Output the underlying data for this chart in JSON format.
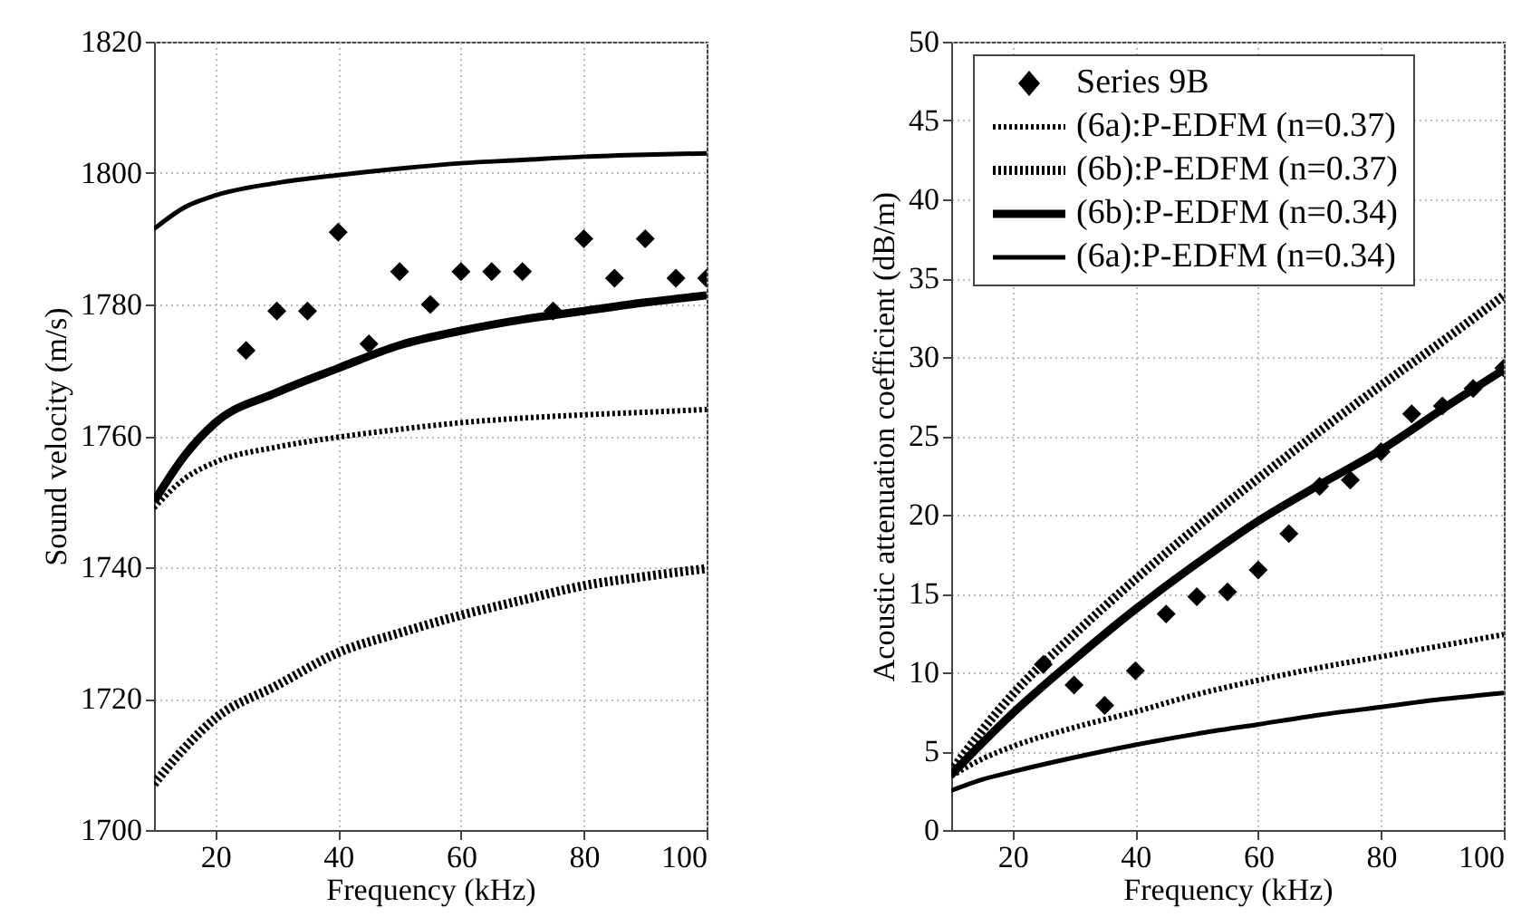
{
  "chart_data": [
    {
      "type": "line",
      "xlabel": "Frequency (kHz)",
      "ylabel": "Sound velocity (m/s)",
      "xlim": [
        10,
        100
      ],
      "xticks": [
        20,
        40,
        60,
        80,
        100
      ],
      "ylim": [
        1700,
        1820
      ],
      "yticks": [
        1700,
        1720,
        1740,
        1760,
        1780,
        1800,
        1820
      ],
      "grid": true,
      "series": [
        {
          "type": "scatter",
          "marker": "diamond",
          "color": "#000000",
          "x": [
            25,
            30,
            35,
            40,
            45,
            50,
            55,
            60,
            65,
            70,
            75,
            80,
            85,
            90,
            95,
            100
          ],
          "values": [
            1773,
            1779,
            1779,
            1791,
            1774,
            1785,
            1780,
            1785,
            1785,
            1785,
            1779,
            1790,
            1784,
            1790,
            1784,
            1784
          ]
        },
        {
          "type": "line",
          "line_style": "dotted",
          "color": "#000000",
          "x": [
            10,
            15,
            20,
            30,
            40,
            50,
            60,
            70,
            80,
            90,
            100
          ],
          "values": [
            1749,
            1753.5,
            1756,
            1758.3,
            1759.8,
            1761,
            1762,
            1762.7,
            1763.2,
            1763.6,
            1764
          ]
        },
        {
          "type": "line",
          "line_style": "dotted",
          "color": "#000000",
          "x": [
            10,
            15,
            20,
            30,
            40,
            50,
            60,
            70,
            80,
            90,
            100
          ],
          "values": [
            1707,
            1712.5,
            1717,
            1722,
            1727,
            1730,
            1732.7,
            1735,
            1737.2,
            1738.6,
            1739.8
          ]
        },
        {
          "type": "line",
          "line_style": "solid",
          "color": "#000000",
          "x": [
            10,
            15,
            20,
            30,
            40,
            50,
            60,
            70,
            80,
            90,
            100
          ],
          "values": [
            1750,
            1757,
            1762,
            1766.6,
            1770.3,
            1773.8,
            1776,
            1777.7,
            1779,
            1780.3,
            1781.4
          ]
        },
        {
          "type": "line",
          "line_style": "solid",
          "color": "#000000",
          "x": [
            10,
            15,
            20,
            30,
            40,
            50,
            60,
            70,
            80,
            90,
            100
          ],
          "values": [
            1791.5,
            1794.8,
            1796.6,
            1798.5,
            1799.7,
            1800.7,
            1801.5,
            1802,
            1802.5,
            1802.8,
            1803
          ]
        }
      ]
    },
    {
      "type": "line",
      "xlabel": "Frequency (kHz)",
      "ylabel": "Acoustic attenuation coefficient (dB/m)",
      "xlim": [
        10,
        100
      ],
      "xticks": [
        20,
        40,
        60,
        80,
        100
      ],
      "ylim": [
        0,
        50
      ],
      "yticks": [
        0,
        5,
        10,
        15,
        20,
        25,
        30,
        35,
        40,
        45,
        50
      ],
      "grid": true,
      "legend": "top left",
      "series": [
        {
          "type": "scatter",
          "name": "Series 9B",
          "marker": "diamond",
          "color": "#000000",
          "x": [
            25,
            30,
            35,
            40,
            45,
            50,
            55,
            60,
            65,
            70,
            75,
            80,
            85,
            90,
            95,
            100
          ],
          "values": [
            10.5,
            9.2,
            7.9,
            10.1,
            13.7,
            14.8,
            15.1,
            16.5,
            18.8,
            21.8,
            22.2,
            24,
            26.4,
            26.9,
            28,
            29.3
          ]
        },
        {
          "type": "line",
          "name": "(6a):P-EDFM (n=0.37)",
          "line_style": "dotted",
          "color": "#000000",
          "x": [
            10,
            15,
            20,
            30,
            40,
            50,
            60,
            70,
            80,
            90,
            100
          ],
          "values": [
            3.4,
            4.5,
            5.3,
            6.5,
            7.5,
            8.6,
            9.5,
            10.3,
            11,
            11.7,
            12.4
          ]
        },
        {
          "type": "line",
          "name": "(6b):P-EDFM (n=0.37)",
          "line_style": "dotted",
          "color": "#000000",
          "x": [
            10,
            15,
            20,
            30,
            40,
            50,
            60,
            70,
            80,
            90,
            100
          ],
          "values": [
            3.7,
            6.3,
            8.6,
            12.4,
            15.9,
            19.2,
            22.3,
            25.3,
            28.2,
            31,
            33.9
          ]
        },
        {
          "type": "line",
          "name": "(6b):P-EDFM (n=0.34)",
          "line_style": "solid",
          "color": "#000000",
          "x": [
            10,
            15,
            20,
            30,
            40,
            50,
            60,
            70,
            80,
            90,
            100
          ],
          "values": [
            3.5,
            5.5,
            7.4,
            10.8,
            14,
            16.9,
            19.6,
            21.9,
            24.1,
            26.7,
            29.2
          ]
        },
        {
          "type": "line",
          "name": "(6a):P-EDFM (n=0.34)",
          "line_style": "solid",
          "color": "#000000",
          "x": [
            10,
            15,
            20,
            30,
            40,
            50,
            60,
            70,
            80,
            90,
            100
          ],
          "values": [
            2.5,
            3.2,
            3.7,
            4.6,
            5.4,
            6.1,
            6.7,
            7.3,
            7.8,
            8.3,
            8.7
          ]
        }
      ]
    }
  ]
}
